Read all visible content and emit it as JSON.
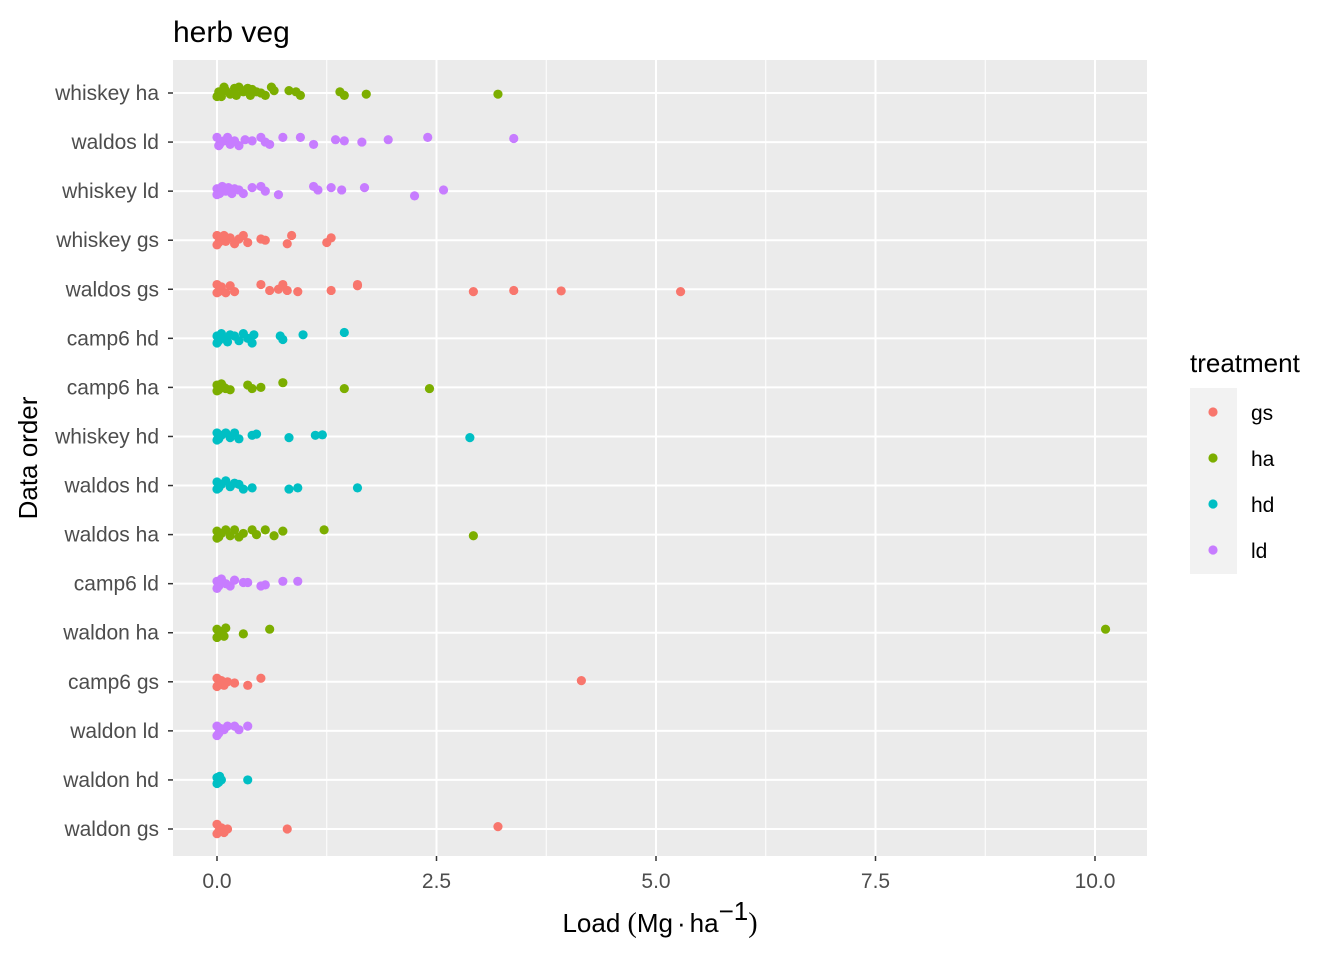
{
  "chart_data": {
    "type": "scatter",
    "title": "herb veg",
    "xlabel_parts": {
      "prefix": "Load ",
      "open": "(",
      "unit1": "Mg",
      "dot": "·",
      "unit2": "ha",
      "sup": "−1",
      "close": ")"
    },
    "ylabel": "Data order",
    "xlim": [
      -0.25,
      10.6
    ],
    "x_ticks": [
      0,
      2.5,
      5,
      7.5,
      10
    ],
    "x_tick_labels": [
      "0.0",
      "2.5",
      "5.0",
      "7.5",
      "10.0"
    ],
    "categories": [
      "whiskey ha",
      "waldos ld",
      "whiskey ld",
      "whiskey gs",
      "waldos gs",
      "camp6 hd",
      "camp6 ha",
      "whiskey hd",
      "waldos hd",
      "waldos ha",
      "camp6 ld",
      "waldon ha",
      "camp6 gs",
      "waldon ld",
      "waldon hd",
      "waldon gs"
    ],
    "legend": {
      "title": "treatment",
      "entries": [
        "gs",
        "ha",
        "hd",
        "ld"
      ]
    },
    "colors": {
      "gs": "#F8766D",
      "ha": "#7CAE00",
      "hd": "#00BFC4",
      "ld": "#C77CFF"
    },
    "series": [
      {
        "category": "whiskey ha",
        "treatment": "ha",
        "points": [
          [
            0.02,
            0.05
          ],
          [
            0.05,
            -0.15
          ],
          [
            0.08,
            0.25
          ],
          [
            0.1,
            0.1
          ],
          [
            0.15,
            -0.05
          ],
          [
            0.2,
            0.2
          ],
          [
            0.22,
            -0.1
          ],
          [
            0.25,
            0.25
          ],
          [
            0.3,
            0.05
          ],
          [
            0.35,
            0.2
          ],
          [
            0.38,
            -0.1
          ],
          [
            0.4,
            0.15
          ],
          [
            0.45,
            0.05
          ],
          [
            0.5,
            0.0
          ],
          [
            0.55,
            -0.1
          ],
          [
            0.62,
            0.25
          ],
          [
            0.65,
            0.1
          ],
          [
            0.82,
            0.1
          ],
          [
            0.9,
            0.05
          ],
          [
            0.95,
            -0.1
          ],
          [
            1.4,
            0.05
          ],
          [
            1.45,
            -0.1
          ],
          [
            1.7,
            -0.05
          ],
          [
            3.2,
            -0.05
          ],
          [
            0.0,
            -0.15
          ]
        ]
      },
      {
        "category": "waldos ld",
        "treatment": "ld",
        "points": [
          [
            0.0,
            0.2
          ],
          [
            0.03,
            -0.1
          ],
          [
            0.08,
            0.05
          ],
          [
            0.12,
            0.2
          ],
          [
            0.15,
            -0.1
          ],
          [
            0.2,
            0.05
          ],
          [
            0.25,
            -0.15
          ],
          [
            0.32,
            0.1
          ],
          [
            0.4,
            0.05
          ],
          [
            0.5,
            0.2
          ],
          [
            0.6,
            -0.1
          ],
          [
            0.75,
            0.2
          ],
          [
            0.95,
            0.2
          ],
          [
            1.1,
            -0.1
          ],
          [
            1.35,
            0.1
          ],
          [
            1.45,
            0.05
          ],
          [
            1.65,
            0.0
          ],
          [
            1.95,
            0.1
          ],
          [
            2.4,
            0.2
          ],
          [
            3.38,
            0.15
          ],
          [
            0.55,
            0.0
          ],
          [
            0.02,
            -0.15
          ]
        ]
      },
      {
        "category": "whiskey ld",
        "treatment": "ld",
        "points": [
          [
            0.0,
            0.1
          ],
          [
            0.03,
            -0.1
          ],
          [
            0.06,
            0.2
          ],
          [
            0.1,
            0.0
          ],
          [
            0.13,
            0.15
          ],
          [
            0.17,
            -0.1
          ],
          [
            0.2,
            0.1
          ],
          [
            0.25,
            0.05
          ],
          [
            0.3,
            -0.1
          ],
          [
            0.4,
            0.15
          ],
          [
            0.5,
            0.2
          ],
          [
            0.55,
            0.0
          ],
          [
            0.7,
            -0.15
          ],
          [
            1.1,
            0.2
          ],
          [
            1.15,
            0.05
          ],
          [
            1.3,
            0.15
          ],
          [
            1.42,
            0.05
          ],
          [
            1.68,
            0.15
          ],
          [
            2.25,
            -0.2
          ],
          [
            2.58,
            0.05
          ],
          [
            0.0,
            -0.15
          ]
        ]
      },
      {
        "category": "whiskey gs",
        "treatment": "gs",
        "points": [
          [
            0.0,
            0.2
          ],
          [
            0.02,
            -0.1
          ],
          [
            0.05,
            0.05
          ],
          [
            0.08,
            0.2
          ],
          [
            0.1,
            -0.05
          ],
          [
            0.15,
            0.1
          ],
          [
            0.2,
            -0.15
          ],
          [
            0.25,
            0.05
          ],
          [
            0.3,
            0.2
          ],
          [
            0.35,
            -0.1
          ],
          [
            0.5,
            0.05
          ],
          [
            0.55,
            0.0
          ],
          [
            0.8,
            -0.15
          ],
          [
            0.85,
            0.2
          ],
          [
            1.25,
            -0.1
          ],
          [
            1.3,
            0.1
          ],
          [
            0.0,
            -0.2
          ]
        ]
      },
      {
        "category": "waldos gs",
        "treatment": "gs",
        "points": [
          [
            0.0,
            0.2
          ],
          [
            0.02,
            -0.1
          ],
          [
            0.05,
            0.1
          ],
          [
            0.1,
            -0.15
          ],
          [
            0.15,
            0.15
          ],
          [
            0.2,
            -0.1
          ],
          [
            0.5,
            0.2
          ],
          [
            0.6,
            -0.05
          ],
          [
            0.75,
            0.2
          ],
          [
            0.8,
            -0.05
          ],
          [
            0.92,
            -0.1
          ],
          [
            1.3,
            -0.05
          ],
          [
            1.6,
            0.2
          ],
          [
            1.6,
            0.15
          ],
          [
            2.92,
            -0.1
          ],
          [
            3.38,
            -0.05
          ],
          [
            3.92,
            -0.07
          ],
          [
            5.28,
            -0.1
          ],
          [
            0.7,
            0.0
          ],
          [
            0.0,
            -0.15
          ]
        ]
      },
      {
        "category": "camp6 hd",
        "treatment": "hd",
        "points": [
          [
            0.0,
            0.1
          ],
          [
            0.02,
            -0.1
          ],
          [
            0.05,
            0.2
          ],
          [
            0.08,
            0.0
          ],
          [
            0.12,
            -0.15
          ],
          [
            0.15,
            0.15
          ],
          [
            0.2,
            0.1
          ],
          [
            0.25,
            -0.1
          ],
          [
            0.3,
            0.2
          ],
          [
            0.35,
            0.0
          ],
          [
            0.4,
            -0.2
          ],
          [
            0.42,
            0.15
          ],
          [
            0.72,
            0.1
          ],
          [
            0.75,
            -0.05
          ],
          [
            0.98,
            0.15
          ],
          [
            1.45,
            0.25
          ],
          [
            0.0,
            -0.2
          ]
        ]
      },
      {
        "category": "camp6 ha",
        "treatment": "ha",
        "points": [
          [
            0.0,
            0.1
          ],
          [
            0.02,
            -0.1
          ],
          [
            0.05,
            0.15
          ],
          [
            0.08,
            0.0
          ],
          [
            0.1,
            -0.05
          ],
          [
            0.15,
            -0.1
          ],
          [
            0.35,
            0.1
          ],
          [
            0.4,
            -0.05
          ],
          [
            0.5,
            0.0
          ],
          [
            0.75,
            0.2
          ],
          [
            1.45,
            -0.05
          ],
          [
            2.42,
            -0.05
          ],
          [
            0.0,
            -0.15
          ]
        ]
      },
      {
        "category": "whiskey hd",
        "treatment": "hd",
        "points": [
          [
            0.0,
            0.15
          ],
          [
            0.02,
            -0.1
          ],
          [
            0.05,
            0.05
          ],
          [
            0.1,
            0.15
          ],
          [
            0.15,
            -0.05
          ],
          [
            0.2,
            0.15
          ],
          [
            0.25,
            -0.1
          ],
          [
            0.4,
            0.05
          ],
          [
            0.45,
            0.1
          ],
          [
            0.82,
            -0.05
          ],
          [
            1.12,
            0.05
          ],
          [
            1.2,
            0.07
          ],
          [
            2.88,
            -0.05
          ],
          [
            0.0,
            -0.15
          ]
        ]
      },
      {
        "category": "waldos hd",
        "treatment": "hd",
        "points": [
          [
            0.0,
            0.15
          ],
          [
            0.02,
            -0.1
          ],
          [
            0.05,
            0.05
          ],
          [
            0.1,
            0.2
          ],
          [
            0.15,
            -0.05
          ],
          [
            0.2,
            0.1
          ],
          [
            0.25,
            0.05
          ],
          [
            0.3,
            -0.15
          ],
          [
            0.4,
            -0.1
          ],
          [
            0.82,
            -0.15
          ],
          [
            0.92,
            -0.1
          ],
          [
            1.6,
            -0.1
          ],
          [
            0.0,
            -0.15
          ]
        ]
      },
      {
        "category": "waldos ha",
        "treatment": "ha",
        "points": [
          [
            0.0,
            0.15
          ],
          [
            0.02,
            -0.1
          ],
          [
            0.05,
            0.05
          ],
          [
            0.1,
            0.2
          ],
          [
            0.15,
            -0.05
          ],
          [
            0.2,
            0.2
          ],
          [
            0.25,
            -0.1
          ],
          [
            0.3,
            0.05
          ],
          [
            0.4,
            0.2
          ],
          [
            0.45,
            0.0
          ],
          [
            0.55,
            0.2
          ],
          [
            0.65,
            -0.05
          ],
          [
            0.75,
            0.15
          ],
          [
            1.22,
            0.2
          ],
          [
            2.92,
            -0.05
          ],
          [
            0.0,
            -0.15
          ]
        ]
      },
      {
        "category": "camp6 ld",
        "treatment": "ld",
        "points": [
          [
            0.0,
            0.1
          ],
          [
            0.02,
            -0.1
          ],
          [
            0.05,
            0.2
          ],
          [
            0.1,
            0.0
          ],
          [
            0.15,
            -0.1
          ],
          [
            0.2,
            0.15
          ],
          [
            0.3,
            0.05
          ],
          [
            0.35,
            0.05
          ],
          [
            0.5,
            -0.1
          ],
          [
            0.55,
            -0.05
          ],
          [
            0.75,
            0.1
          ],
          [
            0.92,
            0.1
          ],
          [
            0.0,
            -0.2
          ]
        ]
      },
      {
        "category": "waldon ha",
        "treatment": "ha",
        "points": [
          [
            0.0,
            0.15
          ],
          [
            0.02,
            -0.1
          ],
          [
            0.05,
            0.05
          ],
          [
            0.08,
            -0.15
          ],
          [
            0.1,
            0.2
          ],
          [
            0.3,
            -0.05
          ],
          [
            0.6,
            0.15
          ],
          [
            10.12,
            0.15
          ],
          [
            0.0,
            -0.2
          ]
        ]
      },
      {
        "category": "camp6 gs",
        "treatment": "gs",
        "points": [
          [
            0.0,
            0.15
          ],
          [
            0.02,
            -0.1
          ],
          [
            0.05,
            0.05
          ],
          [
            0.08,
            -0.15
          ],
          [
            0.12,
            0.0
          ],
          [
            0.2,
            -0.05
          ],
          [
            0.35,
            -0.15
          ],
          [
            0.5,
            0.15
          ],
          [
            4.15,
            0.05
          ],
          [
            0.0,
            -0.2
          ]
        ]
      },
      {
        "category": "waldon ld",
        "treatment": "ld",
        "points": [
          [
            0.0,
            0.2
          ],
          [
            0.02,
            -0.1
          ],
          [
            0.04,
            0.1
          ],
          [
            0.08,
            0.05
          ],
          [
            0.12,
            0.2
          ],
          [
            0.2,
            0.2
          ],
          [
            0.25,
            0.05
          ],
          [
            0.35,
            0.2
          ],
          [
            0.0,
            -0.2
          ]
        ]
      },
      {
        "category": "waldon hd",
        "treatment": "hd",
        "points": [
          [
            0.0,
            0.1
          ],
          [
            0.02,
            -0.1
          ],
          [
            0.03,
            0.15
          ],
          [
            0.05,
            0.0
          ],
          [
            0.35,
            0.0
          ],
          [
            0.0,
            -0.15
          ]
        ]
      },
      {
        "category": "waldon gs",
        "treatment": "gs",
        "points": [
          [
            0.0,
            0.2
          ],
          [
            0.02,
            -0.1
          ],
          [
            0.05,
            0.05
          ],
          [
            0.08,
            -0.15
          ],
          [
            0.12,
            0.0
          ],
          [
            0.8,
            0.0
          ],
          [
            3.2,
            0.1
          ],
          [
            0.0,
            -0.2
          ]
        ]
      }
    ]
  }
}
